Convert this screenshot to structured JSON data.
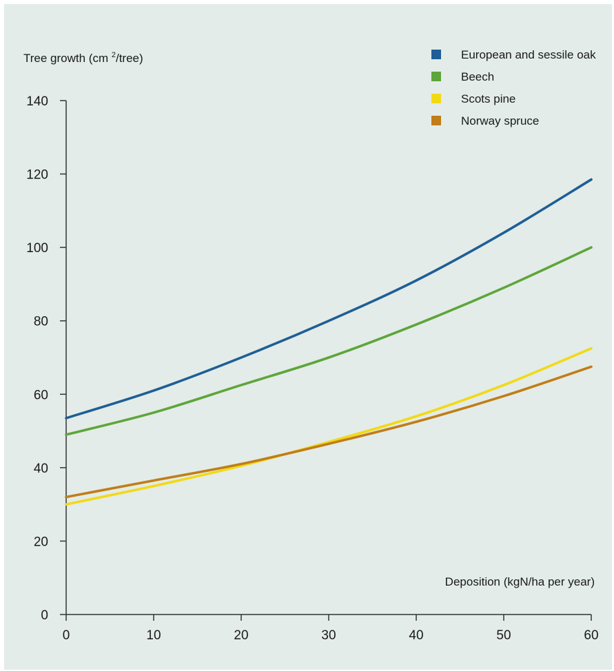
{
  "chart_data": {
    "type": "line",
    "title": "",
    "ylabel": "Tree growth (cm²/tree)",
    "xlabel": "Deposition (kgN/ha per year)",
    "x": [
      0,
      10,
      20,
      30,
      40,
      50,
      60
    ],
    "xlim": [
      0,
      60
    ],
    "ylim": [
      0,
      140
    ],
    "xticks": [
      "0",
      "10",
      "20",
      "30",
      "40",
      "50",
      "60"
    ],
    "yticks": [
      "0",
      "20",
      "40",
      "60",
      "80",
      "100",
      "120",
      "140"
    ],
    "grid": false,
    "legend_position": "top-right",
    "series": [
      {
        "name": "European and sessile oak",
        "color": "#1f5e96",
        "values": [
          53.5,
          61,
          70,
          80,
          91,
          104,
          118.5
        ]
      },
      {
        "name": "Beech",
        "color": "#5ea53a",
        "values": [
          49,
          55,
          62.5,
          70,
          79,
          89,
          100
        ]
      },
      {
        "name": "Scots pine",
        "color": "#f2d916",
        "values": [
          30,
          35,
          40.5,
          47,
          54,
          62.5,
          72.5
        ]
      },
      {
        "name": "Norway spruce",
        "color": "#c17d17",
        "values": [
          32,
          36.5,
          41,
          46.5,
          52.5,
          59.5,
          67.5
        ]
      }
    ]
  }
}
